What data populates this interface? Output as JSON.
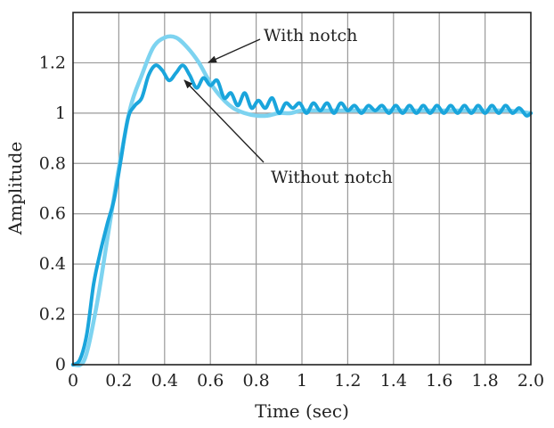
{
  "chart_data": {
    "type": "line",
    "title": "",
    "xlabel": "Time (sec)",
    "ylabel": "Amplitude",
    "xlim": [
      0,
      2
    ],
    "ylim": [
      0,
      1.4
    ],
    "grid": true,
    "xticks": [
      0,
      0.2,
      0.4,
      0.6,
      0.8,
      1,
      1.2,
      1.4,
      1.6,
      1.8,
      2
    ],
    "xtick_labels": [
      "0",
      "0.2",
      "0.4",
      "0.6",
      "0.8",
      "1",
      "1.2",
      "1.4",
      "1.6",
      "1.8",
      "2.0"
    ],
    "yticks": [
      0,
      0.2,
      0.4,
      0.6,
      0.8,
      1,
      1.2
    ],
    "ytick_labels": [
      "0",
      "0.2",
      "0.4",
      "0.6",
      "0.8",
      "1",
      "1.2"
    ],
    "series": [
      {
        "name": "With notch",
        "color": "#7dd3f0",
        "x": [
          0,
          0.05,
          0.1,
          0.15,
          0.2,
          0.25,
          0.3,
          0.35,
          0.4,
          0.45,
          0.5,
          0.55,
          0.6,
          0.65,
          0.7,
          0.75,
          0.8,
          0.85,
          0.9,
          0.95,
          1.0,
          1.1,
          1.2,
          1.3,
          1.4,
          1.5,
          1.6,
          1.7,
          1.8,
          1.9,
          2.0
        ],
        "y": [
          0,
          0.02,
          0.22,
          0.5,
          0.78,
          1.02,
          1.15,
          1.26,
          1.3,
          1.3,
          1.26,
          1.2,
          1.12,
          1.06,
          1.02,
          1.0,
          0.99,
          0.99,
          1.0,
          1.0,
          1.01,
          1.01,
          1.01,
          1.01,
          1.01,
          1.01,
          1.01,
          1.01,
          1.01,
          1.01,
          1.0
        ]
      },
      {
        "name": "Without notch",
        "color": "#1aa5dc",
        "x": [
          0,
          0.03,
          0.06,
          0.09,
          0.12,
          0.15,
          0.18,
          0.21,
          0.24,
          0.27,
          0.3,
          0.33,
          0.36,
          0.39,
          0.42,
          0.45,
          0.48,
          0.51,
          0.54,
          0.57,
          0.6,
          0.63,
          0.66,
          0.69,
          0.72,
          0.75,
          0.78,
          0.81,
          0.84,
          0.87,
          0.9,
          0.93,
          0.96,
          0.99,
          1.02,
          1.05,
          1.08,
          1.11,
          1.14,
          1.17,
          1.2,
          1.23,
          1.26,
          1.29,
          1.32,
          1.35,
          1.38,
          1.41,
          1.44,
          1.47,
          1.5,
          1.53,
          1.56,
          1.59,
          1.62,
          1.65,
          1.68,
          1.71,
          1.74,
          1.77,
          1.8,
          1.83,
          1.86,
          1.89,
          1.92,
          1.95,
          1.98,
          2.0
        ],
        "y": [
          0,
          0.02,
          0.12,
          0.32,
          0.45,
          0.56,
          0.66,
          0.82,
          0.98,
          1.03,
          1.06,
          1.15,
          1.19,
          1.17,
          1.13,
          1.16,
          1.19,
          1.15,
          1.1,
          1.14,
          1.11,
          1.13,
          1.06,
          1.08,
          1.03,
          1.08,
          1.02,
          1.05,
          1.02,
          1.06,
          1.0,
          1.04,
          1.02,
          1.04,
          1.0,
          1.04,
          1.01,
          1.04,
          1.0,
          1.04,
          1.01,
          1.03,
          1.0,
          1.03,
          1.01,
          1.03,
          1.0,
          1.03,
          1.0,
          1.03,
          1.0,
          1.03,
          1.0,
          1.03,
          1.0,
          1.03,
          1.0,
          1.03,
          1.0,
          1.03,
          1.0,
          1.03,
          1.0,
          1.03,
          1.0,
          1.02,
          0.99,
          1.0
        ]
      }
    ],
    "annotations": [
      {
        "text": "With notch",
        "target_series": "With notch",
        "arrow_to": [
          0.58,
          1.2
        ]
      },
      {
        "text": "Without notch",
        "target_series": "Without notch",
        "arrow_to": [
          0.48,
          1.19
        ]
      }
    ]
  }
}
